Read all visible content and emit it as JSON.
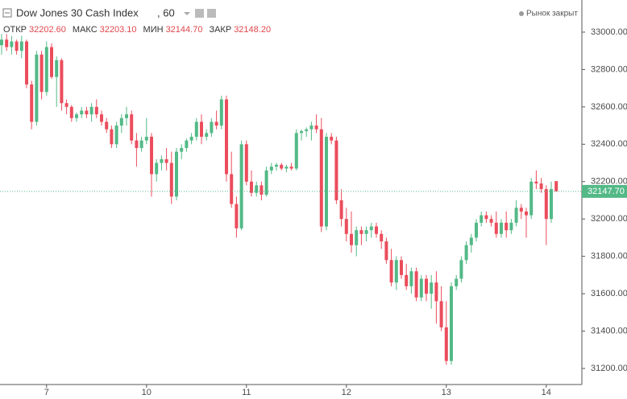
{
  "chart_data": {
    "type": "candlestick",
    "title": "Dow Jones 30 Cash Index",
    "interval": ", 60",
    "status": "Рынок закрыт",
    "ohlc_header": [
      {
        "label": "ОТКР",
        "value": "32202.60"
      },
      {
        "label": "МАКС",
        "value": "32203.10"
      },
      {
        "label": "МИН",
        "value": "32144.70"
      },
      {
        "label": "ЗАКР",
        "value": "32148.20"
      }
    ],
    "up_color": "#53b987",
    "down_color": "#eb4d5c",
    "last_price": {
      "value": 32147.7,
      "label": "32147.70"
    },
    "categories": [
      null,
      null,
      null,
      null,
      null,
      null,
      null,
      null,
      null,
      "7",
      null,
      null,
      null,
      null,
      null,
      null,
      null,
      null,
      null,
      null,
      null,
      null,
      null,
      null,
      null,
      null,
      null,
      null,
      null,
      "10",
      null,
      null,
      null,
      null,
      null,
      null,
      null,
      null,
      null,
      null,
      null,
      null,
      null,
      null,
      null,
      null,
      null,
      null,
      null,
      "11",
      null,
      null,
      null,
      null,
      null,
      null,
      null,
      null,
      null,
      null,
      null,
      null,
      null,
      null,
      null,
      null,
      null,
      null,
      null,
      "12",
      null,
      null,
      null,
      null,
      null,
      null,
      null,
      null,
      null,
      null,
      null,
      null,
      null,
      null,
      null,
      null,
      null,
      null,
      null,
      "13",
      null,
      null,
      null,
      null,
      null,
      null,
      null,
      null,
      null,
      null,
      null,
      null,
      null,
      null,
      null,
      null,
      null,
      null,
      null,
      "14",
      null,
      null
    ],
    "open": [
      32930,
      32960,
      32920,
      32950,
      32900,
      32950,
      32720,
      32520,
      32880,
      32680,
      32920,
      32760,
      32850,
      32620,
      32600,
      32540,
      32560,
      32580,
      32560,
      32600,
      32560,
      32520,
      32480,
      32400,
      32500,
      32540,
      32560,
      32420,
      32380,
      32420,
      32440,
      32240,
      32300,
      32320,
      32300,
      32120,
      32360,
      32380,
      32420,
      32440,
      32520,
      32440,
      32460,
      32520,
      32500,
      32640,
      32240,
      32080,
      31950,
      32400,
      32200,
      32140,
      32180,
      32130,
      32260,
      32280,
      32290,
      32270,
      32280,
      32270,
      32460,
      32470,
      32480,
      32500,
      32480,
      31960,
      32440,
      32420,
      32100,
      32000,
      31920,
      31860,
      31940,
      31920,
      31940,
      31960,
      31920,
      31880,
      31780,
      31660,
      31780,
      31700,
      31640,
      31720,
      31580,
      31680,
      31600,
      31660,
      31560,
      31420,
      31240,
      31640,
      31680,
      31780,
      31860,
      31900,
      31980,
      32020,
      32000,
      31980,
      31920,
      31980,
      31940,
      31980,
      32060,
      32040,
      32020,
      32200,
      32190,
      32160,
      32000,
      32202.6
    ],
    "high": [
      32990,
      32990,
      32980,
      32960,
      32980,
      32960,
      32740,
      32900,
      32900,
      32950,
      32940,
      32870,
      32860,
      32640,
      32610,
      32570,
      32600,
      32600,
      32620,
      32640,
      32580,
      32540,
      32500,
      32520,
      32560,
      32600,
      32580,
      32460,
      32440,
      32540,
      32460,
      32320,
      32340,
      32380,
      32360,
      32380,
      32400,
      32430,
      32460,
      32540,
      32560,
      32480,
      32540,
      32580,
      32660,
      32660,
      32360,
      32120,
      32420,
      32420,
      32260,
      32200,
      32200,
      32280,
      32300,
      32300,
      32300,
      32290,
      32300,
      32480,
      32480,
      32490,
      32520,
      32560,
      32540,
      32460,
      32460,
      32440,
      32160,
      32060,
      32040,
      31960,
      31960,
      31960,
      31980,
      31980,
      31940,
      31900,
      31840,
      31800,
      31800,
      31760,
      31740,
      31740,
      31700,
      31700,
      31700,
      31720,
      31640,
      31560,
      31660,
      31700,
      31800,
      31880,
      31920,
      32000,
      32040,
      32040,
      32020,
      32040,
      32000,
      32040,
      32000,
      32100,
      32080,
      32060,
      32220,
      32260,
      32220,
      32180,
      32200,
      32203.1
    ],
    "low": [
      32880,
      32900,
      32880,
      32880,
      32860,
      32700,
      32480,
      32500,
      32640,
      32660,
      32750,
      32600,
      32580,
      32560,
      32520,
      32520,
      32540,
      32540,
      32520,
      32540,
      32500,
      32460,
      32380,
      32380,
      32460,
      32500,
      32400,
      32280,
      32360,
      32400,
      32120,
      32200,
      32260,
      32260,
      32080,
      32100,
      32320,
      32360,
      32400,
      32420,
      32400,
      32420,
      32440,
      32480,
      32480,
      32200,
      32060,
      31900,
      31940,
      32180,
      32120,
      32120,
      32100,
      32120,
      32240,
      32260,
      32260,
      32250,
      32260,
      32260,
      32420,
      32440,
      32420,
      32460,
      31930,
      31940,
      32400,
      32080,
      31960,
      31880,
      31820,
      31800,
      31860,
      31880,
      31900,
      31900,
      31840,
      31760,
      31640,
      31620,
      31680,
      31620,
      31600,
      31560,
      31560,
      31560,
      31520,
      31440,
      31400,
      31220,
      31220,
      31620,
      31660,
      31760,
      31820,
      31880,
      31960,
      31980,
      31960,
      31900,
      31900,
      31900,
      31920,
      31960,
      32000,
      31900,
      32000,
      32160,
      32140,
      31860,
      31980,
      32144.7
    ],
    "close": [
      32960,
      32920,
      32950,
      32900,
      32950,
      32720,
      32520,
      32880,
      32680,
      32920,
      32760,
      32850,
      32620,
      32600,
      32540,
      32560,
      32580,
      32560,
      32600,
      32560,
      32520,
      32480,
      32400,
      32500,
      32540,
      32560,
      32420,
      32380,
      32420,
      32440,
      32240,
      32300,
      32320,
      32300,
      32120,
      32360,
      32380,
      32420,
      32440,
      32520,
      32440,
      32460,
      32520,
      32500,
      32640,
      32240,
      32080,
      31950,
      32400,
      32200,
      32140,
      32180,
      32130,
      32260,
      32280,
      32290,
      32270,
      32280,
      32270,
      32460,
      32470,
      32480,
      32500,
      32480,
      31960,
      32440,
      32420,
      32100,
      32000,
      31920,
      31860,
      31940,
      31920,
      31940,
      31960,
      31920,
      31880,
      31780,
      31660,
      31780,
      31700,
      31640,
      31720,
      31580,
      31680,
      31600,
      31660,
      31560,
      31420,
      31240,
      31640,
      31680,
      31780,
      31860,
      31900,
      31980,
      32020,
      32000,
      31980,
      31920,
      31980,
      31940,
      31980,
      32060,
      32040,
      32020,
      32200,
      32190,
      32160,
      32000,
      32160,
      32148.2
    ],
    "ylim": [
      31114,
      33172
    ],
    "yticks": [
      {
        "value": 33000,
        "label": "33000.00"
      },
      {
        "value": 32800,
        "label": "32800.00"
      },
      {
        "value": 32600,
        "label": "32600.00"
      },
      {
        "value": 32400,
        "label": "32400.00"
      },
      {
        "value": 32200,
        "label": "32200.00"
      },
      {
        "value": 32000,
        "label": "32000.00"
      },
      {
        "value": 31800,
        "label": "31800.00"
      },
      {
        "value": 31600,
        "label": "31600.00"
      },
      {
        "value": 31400,
        "label": "31400.00"
      },
      {
        "value": 31200,
        "label": "31200.00"
      }
    ]
  }
}
